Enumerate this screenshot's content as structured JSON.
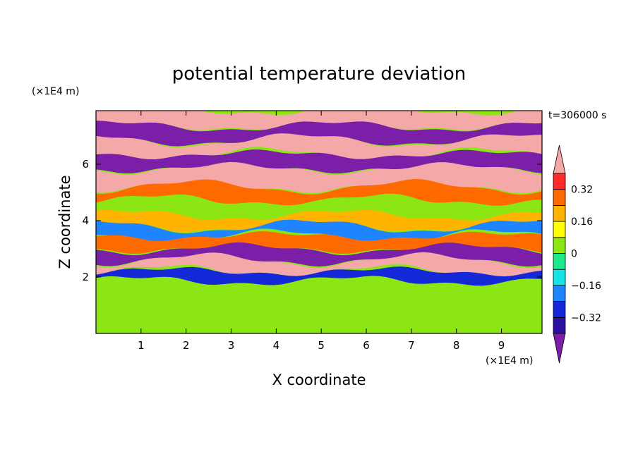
{
  "chart_data": {
    "type": "heatmap",
    "title": "potential temperature deviation",
    "xlabel": "X coordinate",
    "ylabel": "Z coordinate",
    "x_unit": "(×1E4 m)",
    "y_unit": "(×1E4 m)",
    "time_label": "t=306000 s",
    "xlim": [
      0,
      9.9
    ],
    "ylim": [
      0,
      7.9
    ],
    "x_ticks": [
      1,
      2,
      3,
      4,
      5,
      6,
      7,
      8,
      9
    ],
    "y_ticks": [
      2,
      4,
      6
    ],
    "colorbar": {
      "levels": [
        -0.4,
        -0.32,
        -0.24,
        -0.16,
        -0.08,
        0,
        0.08,
        0.16,
        0.24,
        0.32,
        0.4
      ],
      "tick_values": [
        -0.32,
        -0.16,
        0,
        0.16,
        0.32
      ],
      "tick_labels": [
        "−0.32",
        "−0.16",
        "0",
        "0.16",
        "0.32"
      ],
      "colors": [
        "#7b1fa8",
        "#2b0fa0",
        "#1428d8",
        "#1e84ff",
        "#14e6e6",
        "#1ee88c",
        "#8ce614",
        "#ffff00",
        "#ffb400",
        "#ff6a00",
        "#ff2a2a",
        "#f4a8a8"
      ],
      "extend": "both"
    },
    "bands": [
      {
        "z_bottom": 7.35,
        "z_top": 7.9,
        "value": 0.45
      },
      {
        "z_bottom": 6.85,
        "z_top": 7.35,
        "value": -0.45
      },
      {
        "z_bottom": 6.35,
        "z_top": 6.85,
        "value": 0.45
      },
      {
        "z_bottom": 5.85,
        "z_top": 6.35,
        "value": -0.45
      },
      {
        "z_bottom": 5.2,
        "z_top": 5.85,
        "value": 0.45
      },
      {
        "z_bottom": 4.7,
        "z_top": 5.2,
        "value": 0.28
      },
      {
        "z_bottom": 4.2,
        "z_top": 4.7,
        "value": 0.05
      },
      {
        "z_bottom": 3.8,
        "z_top": 4.2,
        "value": 0.18
      },
      {
        "z_bottom": 3.45,
        "z_top": 3.8,
        "value": -0.2
      },
      {
        "z_bottom": 3.0,
        "z_top": 3.45,
        "value": 0.3
      },
      {
        "z_bottom": 2.6,
        "z_top": 3.0,
        "value": -0.45
      },
      {
        "z_bottom": 2.2,
        "z_top": 2.6,
        "value": 0.45
      },
      {
        "z_bottom": 1.85,
        "z_top": 2.2,
        "value": -0.3
      },
      {
        "z_bottom": 0.0,
        "z_top": 1.85,
        "value": 0.04
      }
    ]
  }
}
